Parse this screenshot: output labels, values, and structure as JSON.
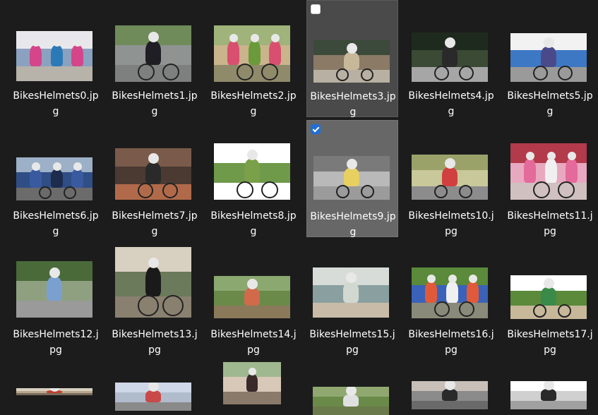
{
  "files": [
    {
      "name": "BikesHelmets0.jpg",
      "state": "normal",
      "palette": {
        "sky": "#e8e8ec",
        "mid": "#8aa2c0",
        "ground": "#b7b3aa",
        "fig": "#d5458a",
        "fig2": "#2c79b8",
        "wheel": false
      }
    },
    {
      "name": "BikesHelmets1.jpg",
      "state": "normal",
      "palette": {
        "sky": "#6f8b5a",
        "mid": "#8f9392",
        "ground": "#7e807f",
        "fig": "#1e1e24",
        "fig2": "#3e6a2f",
        "wheel": true
      }
    },
    {
      "name": "BikesHelmets2.jpg",
      "state": "normal",
      "palette": {
        "sky": "#9fb37a",
        "mid": "#c9b48c",
        "ground": "#8f8a6a",
        "fig": "#d94f6f",
        "fig2": "#6a9a3a",
        "wheel": true
      }
    },
    {
      "name": "BikesHelmets3.jpg",
      "state": "hovered",
      "checkbox": "unchecked",
      "palette": {
        "sky": "#3b4a3a",
        "mid": "#8a7a66",
        "ground": "#b8b0a2",
        "fig": "#c8b89a",
        "fig2": "#5a6a4a",
        "wheel": true
      }
    },
    {
      "name": "BikesHelmets4.jpg",
      "state": "normal",
      "palette": {
        "sky": "#1f2a1e",
        "mid": "#3a4a34",
        "ground": "#a6a6a6",
        "fig": "#2a2a2a",
        "fig2": "#55624f",
        "wheel": true
      }
    },
    {
      "name": "BikesHelmets5.jpg",
      "state": "normal",
      "palette": {
        "sky": "#f2f2f2",
        "mid": "#3d78c4",
        "ground": "#9a9a9a",
        "fig": "#4a4a8a",
        "fig2": "#1e1e1e",
        "wheel": true
      }
    },
    {
      "name": "BikesHelmets6.jpg",
      "state": "normal",
      "palette": {
        "sky": "#9cb0c7",
        "mid": "#2f4e86",
        "ground": "#6b6b6b",
        "fig": "#3a5aa0",
        "fig2": "#1d2b4d",
        "wheel": true
      }
    },
    {
      "name": "BikesHelmets7.jpg",
      "state": "normal",
      "palette": {
        "sky": "#7a5a4a",
        "mid": "#4a3a32",
        "ground": "#b06a4a",
        "fig": "#2a2a2a",
        "fig2": "#7a7a7a",
        "wheel": true
      }
    },
    {
      "name": "BikesHelmets8.jpg",
      "state": "normal",
      "palette": {
        "sky": "#ffffff",
        "mid": "#6f9a4a",
        "ground": "#ffffff",
        "fig": "#7aa04a",
        "fig2": "#2a2a2a",
        "wheel": true
      }
    },
    {
      "name": "BikesHelmets9.jpg",
      "state": "selected",
      "checkbox": "checked",
      "palette": {
        "sky": "#7a7a7a",
        "mid": "#b9b9b9",
        "ground": "#9b9b9b",
        "fig": "#e8d060",
        "fig2": "#333333",
        "wheel": true
      }
    },
    {
      "name": "BikesHelmets10.jpg",
      "state": "normal",
      "palette": {
        "sky": "#9aa26a",
        "mid": "#c8c89a",
        "ground": "#8c8c8c",
        "fig": "#d04040",
        "fig2": "#e8e8e8",
        "wheel": true
      }
    },
    {
      "name": "BikesHelmets11.jpg",
      "state": "normal",
      "palette": {
        "sky": "#b23a4a",
        "mid": "#e8a8c0",
        "ground": "#d0c0c0",
        "fig": "#e36a9a",
        "fig2": "#f0f0f0",
        "wheel": true
      }
    },
    {
      "name": "BikesHelmets12.jpg",
      "state": "normal",
      "palette": {
        "sky": "#4a6a3a",
        "mid": "#8fa080",
        "ground": "#9a9a9a",
        "fig": "#7aa0d0",
        "fig2": "#dddddd",
        "wheel": false
      }
    },
    {
      "name": "BikesHelmets13.jpg",
      "state": "normal",
      "palette": {
        "sky": "#d8d0c0",
        "mid": "#6a7a5a",
        "ground": "#8a8070",
        "fig": "#1a1a1a",
        "fig2": "#5a4a40",
        "wheel": true
      }
    },
    {
      "name": "BikesHelmets14.jpg",
      "state": "normal",
      "palette": {
        "sky": "#8aa870",
        "mid": "#6a8a4a",
        "ground": "#8a7a5a",
        "fig": "#d06a4a",
        "fig2": "#e8c0a0",
        "wheel": false
      }
    },
    {
      "name": "BikesHelmets15.jpg",
      "state": "normal",
      "palette": {
        "sky": "#d8dcd8",
        "mid": "#8aa0a0",
        "ground": "#c8bca8",
        "fig": "#d0d8d0",
        "fig2": "#2a3a4a",
        "wheel": false
      }
    },
    {
      "name": "BikesHelmets16.jpg",
      "state": "normal",
      "palette": {
        "sky": "#5a8a3a",
        "mid": "#3a62b8",
        "ground": "#8a8a7a",
        "fig": "#e05a3a",
        "fig2": "#f0f0f0",
        "wheel": true
      }
    },
    {
      "name": "BikesHelmets17.jpg",
      "state": "normal",
      "palette": {
        "sky": "#ffffff",
        "mid": "#5a8a3a",
        "ground": "#c8b89a",
        "fig": "#3a8a4a",
        "fig2": "#e0e0e0",
        "wheel": true
      }
    },
    {
      "name": "",
      "state": "partial",
      "palette": {
        "sky": "#d8d0c0",
        "mid": "#b8a890",
        "ground": "#7a6a5a",
        "fig": "#c04030",
        "fig2": "#2a2a2a",
        "wheel": false
      }
    },
    {
      "name": "",
      "state": "partial",
      "palette": {
        "sky": "#cfd8e8",
        "mid": "#b0bccc",
        "ground": "#8a8a8a",
        "fig": "#c84a4a",
        "fig2": "#f0f0f0",
        "wheel": false
      }
    },
    {
      "name": "",
      "state": "partial",
      "palette": {
        "sky": "#a0b890",
        "mid": "#d8c8b8",
        "ground": "#8a7a6a",
        "fig": "#3a2a2a",
        "fig2": "#ffffff",
        "wheel": false
      }
    },
    {
      "name": "",
      "state": "partial",
      "palette": {
        "sky": "#90a870",
        "mid": "#6a8a4a",
        "ground": "#6a7a4a",
        "fig": "#e0e0e0",
        "fig2": "#3a3a3a",
        "wheel": false
      }
    },
    {
      "name": "",
      "state": "partial",
      "palette": {
        "sky": "#c8c0b8",
        "mid": "#8a8a8a",
        "ground": "#6a6a6a",
        "fig": "#2a2a2a",
        "fig2": "#d0d0d0",
        "wheel": false
      }
    },
    {
      "name": "",
      "state": "partial",
      "palette": {
        "sky": "#ffffff",
        "mid": "#d0d0d0",
        "ground": "#a0a0a0",
        "fig": "#2a2a2a",
        "fig2": "#e0e0e0",
        "wheel": false
      }
    }
  ]
}
